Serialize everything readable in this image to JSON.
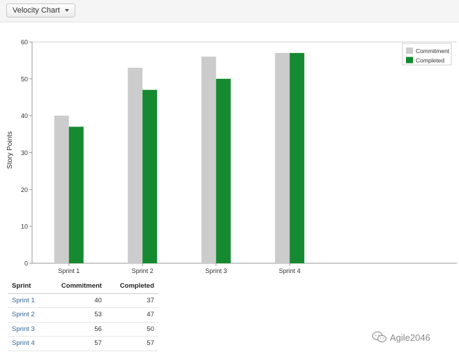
{
  "toolbar": {
    "report_selector": "Velocity Chart"
  },
  "chart_data": {
    "type": "bar",
    "categories": [
      "Sprint 1",
      "Sprint 2",
      "Sprint 3",
      "Sprint 4"
    ],
    "series": [
      {
        "name": "Commitment",
        "values": [
          40,
          53,
          56,
          57
        ],
        "color": "#cccccc"
      },
      {
        "name": "Completed",
        "values": [
          37,
          47,
          50,
          57
        ],
        "color": "#168a30"
      }
    ],
    "ylabel": "Story Points",
    "xlabel": "",
    "ylim": [
      0,
      60
    ],
    "yticks": [
      0,
      10,
      20,
      30,
      40,
      50,
      60
    ],
    "grid": false,
    "legend": "top-right"
  },
  "table": {
    "headers": [
      "Sprint",
      "Commitment",
      "Completed"
    ],
    "rows": [
      [
        "Sprint 1",
        "40",
        "37"
      ],
      [
        "Sprint 2",
        "53",
        "47"
      ],
      [
        "Sprint 3",
        "56",
        "50"
      ],
      [
        "Sprint 4",
        "57",
        "57"
      ]
    ]
  },
  "watermark": {
    "text": "Agile2046"
  }
}
